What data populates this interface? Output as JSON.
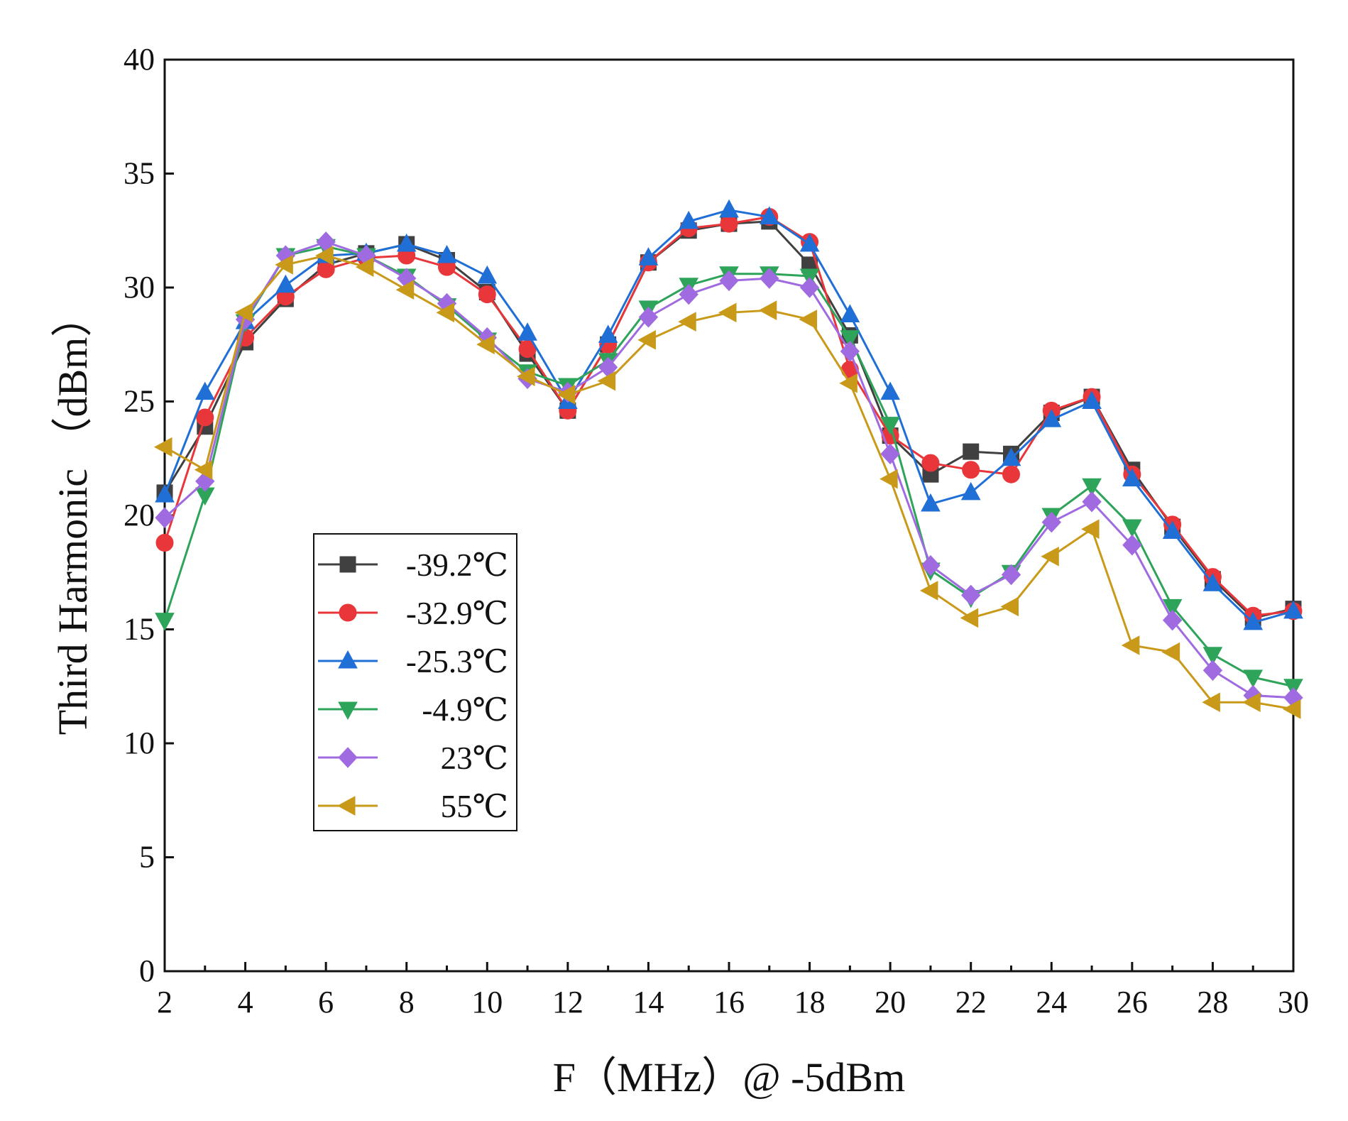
{
  "chart_data": {
    "type": "line",
    "title": "",
    "xlabel": "F（MHz）@ -5dBm",
    "ylabel": "Third Harmonic （dBm）",
    "xlim": [
      2,
      30
    ],
    "ylim": [
      0,
      40
    ],
    "xticks": [
      2,
      4,
      6,
      8,
      10,
      12,
      14,
      16,
      18,
      20,
      22,
      24,
      26,
      28,
      30
    ],
    "yticks": [
      0,
      5,
      10,
      15,
      20,
      25,
      30,
      35,
      40
    ],
    "grid": false,
    "legend_position": "middle-left",
    "x": [
      2,
      3,
      4,
      5,
      6,
      7,
      8,
      9,
      10,
      11,
      12,
      13,
      14,
      15,
      16,
      17,
      18,
      19,
      20,
      21,
      22,
      23,
      24,
      25,
      26,
      27,
      28,
      29,
      30
    ],
    "series": [
      {
        "name": "-39.2℃",
        "color": "#404040",
        "marker": "square",
        "values": [
          21.0,
          23.9,
          27.6,
          29.5,
          31.0,
          31.5,
          31.9,
          31.2,
          29.8,
          27.1,
          24.6,
          27.5,
          31.1,
          32.5,
          32.8,
          32.9,
          31.0,
          27.9,
          23.5,
          21.8,
          22.8,
          22.7,
          24.5,
          25.2,
          22.0,
          19.5,
          17.2,
          15.5,
          15.9
        ]
      },
      {
        "name": "-32.9℃",
        "color": "#e8363a",
        "marker": "circle",
        "values": [
          18.8,
          24.3,
          27.8,
          29.6,
          30.8,
          31.3,
          31.4,
          30.9,
          29.7,
          27.3,
          24.6,
          27.5,
          31.1,
          32.6,
          32.8,
          33.1,
          32.0,
          26.4,
          23.5,
          22.3,
          22.0,
          21.8,
          24.6,
          25.2,
          21.8,
          19.6,
          17.3,
          15.6,
          15.8
        ]
      },
      {
        "name": "-25.3℃",
        "color": "#1f6fd6",
        "marker": "triangle-up",
        "values": [
          20.9,
          25.4,
          28.5,
          30.1,
          31.4,
          31.5,
          31.9,
          31.4,
          30.5,
          28.0,
          25.0,
          27.9,
          31.3,
          32.9,
          33.4,
          33.1,
          31.9,
          28.8,
          25.4,
          20.5,
          21.0,
          22.5,
          24.2,
          25.0,
          21.6,
          19.3,
          17.0,
          15.3,
          15.8
        ]
      },
      {
        "name": "-4.9℃",
        "color": "#2ea35a",
        "marker": "triangle-down",
        "values": [
          15.4,
          20.9,
          28.5,
          31.4,
          31.8,
          31.4,
          30.5,
          29.2,
          27.7,
          26.3,
          25.7,
          26.8,
          29.1,
          30.1,
          30.6,
          30.6,
          30.5,
          27.8,
          24.0,
          17.6,
          16.4,
          17.5,
          20.0,
          21.3,
          19.5,
          16.0,
          13.9,
          12.9,
          12.5
        ]
      },
      {
        "name": "23℃",
        "color": "#a06be0",
        "marker": "diamond",
        "values": [
          19.9,
          21.5,
          28.6,
          31.4,
          32.0,
          31.4,
          30.4,
          29.3,
          27.8,
          26.0,
          25.4,
          26.5,
          28.7,
          29.7,
          30.3,
          30.4,
          30.0,
          27.2,
          22.7,
          17.8,
          16.5,
          17.4,
          19.7,
          20.6,
          18.7,
          15.4,
          13.2,
          12.1,
          12.0
        ]
      },
      {
        "name": "55℃",
        "color": "#c99a1a",
        "marker": "triangle-left",
        "values": [
          23.0,
          22.0,
          28.9,
          31.0,
          31.4,
          30.9,
          29.9,
          28.9,
          27.5,
          26.1,
          25.3,
          25.9,
          27.7,
          28.5,
          28.9,
          29.0,
          28.6,
          25.8,
          21.6,
          16.7,
          15.5,
          16.0,
          18.2,
          19.4,
          14.3,
          14.0,
          11.8,
          11.8,
          11.5
        ]
      }
    ]
  }
}
